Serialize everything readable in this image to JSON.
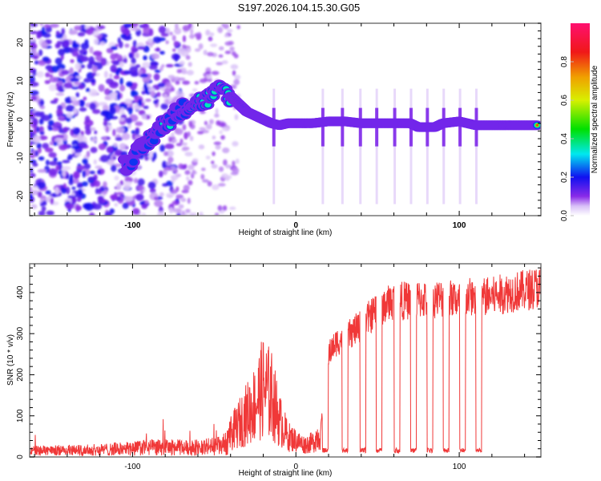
{
  "title": "S197.2026.104.15.30.G05",
  "chart_data": [
    {
      "type": "heatmap",
      "name": "spectrogram",
      "xlabel": "Height of straight line (km)",
      "ylabel": "Frequency (Hz)",
      "xlim": [
        -163,
        150
      ],
      "ylim": [
        -25,
        25
      ],
      "xticks": [
        -100,
        0,
        100
      ],
      "xtick_labels": [
        "-100",
        "0",
        "100"
      ],
      "yticks": [
        -20,
        -10,
        0,
        10,
        20
      ],
      "ytick_labels": [
        "-20",
        "-10",
        "0",
        "10",
        "20"
      ],
      "colorbar": {
        "label": "Normalized spectral amplitude",
        "range": [
          0.0,
          1.0
        ],
        "ticks": [
          0.0,
          0.2,
          0.4,
          0.6,
          0.8
        ],
        "tick_labels": [
          "0.0",
          "0.2",
          "0.4",
          "0.6",
          "0.8"
        ],
        "colormap": "purple-blue-cyan-green-yellow-red-magenta"
      },
      "ridge": {
        "description": "Dominant spectral ridge (peak frequency vs height)",
        "x": [
          -105,
          -95,
          -85,
          -75,
          -65,
          -55,
          -45,
          -40,
          -35,
          -30,
          -25,
          -20,
          -15,
          -10,
          -5,
          0,
          10,
          20,
          30,
          40,
          50,
          60,
          70,
          75,
          80,
          85,
          90,
          100,
          110,
          120,
          130,
          140,
          148
        ],
        "y": [
          -12,
          -8,
          -3,
          1,
          4,
          5,
          8,
          6,
          4,
          2,
          1,
          0,
          -1,
          -1.5,
          -1,
          -1,
          -1,
          -0.5,
          -0.5,
          -1,
          -1,
          -1,
          -1,
          -2,
          -2,
          -2,
          -1,
          -0.5,
          -1.5,
          -1.5,
          -1.5,
          -1.5,
          -1.5
        ],
        "amplitude": [
          0.2,
          0.25,
          0.3,
          0.3,
          0.35,
          0.35,
          0.45,
          0.4,
          0.5,
          0.6,
          0.65,
          0.6,
          0.55,
          0.5,
          0.5,
          0.55,
          0.8,
          0.85,
          0.9,
          0.7,
          0.6,
          0.7,
          0.9,
          0.8,
          0.7,
          0.8,
          0.75,
          0.8,
          0.95,
          0.95,
          0.95,
          0.95,
          0.95
        ]
      },
      "noise_region": {
        "x_from": -163,
        "x_to": -90,
        "amplitude_max": 0.15
      }
    },
    {
      "type": "line",
      "name": "snr",
      "xlabel": "Height of straight line (km)",
      "ylabel": "SNR (10 * v/v)",
      "xlim": [
        -163,
        150
      ],
      "ylim": [
        0,
        470
      ],
      "xticks": [
        -100,
        0,
        100
      ],
      "xtick_labels": [
        "-100",
        "0",
        "100"
      ],
      "yticks": [
        0,
        100,
        200,
        300,
        400
      ],
      "ytick_labels": [
        "0",
        "100",
        "200",
        "300",
        "400"
      ],
      "color": "#ee2222",
      "envelope": {
        "x": [
          -163,
          -120,
          -90,
          -60,
          -45,
          -35,
          -25,
          -20,
          -15,
          -10,
          -5,
          0,
          5,
          10,
          15,
          18,
          20,
          25,
          30,
          40,
          50,
          60,
          70,
          80,
          90,
          100,
          110,
          120,
          130,
          140,
          150
        ],
        "y": [
          15,
          18,
          25,
          25,
          30,
          80,
          130,
          170,
          150,
          90,
          50,
          40,
          30,
          35,
          60,
          180,
          250,
          280,
          290,
          320,
          360,
          380,
          380,
          385,
          385,
          385,
          390,
          390,
          400,
          405,
          415
        ]
      },
      "dropouts_x": [
        18,
        30,
        41,
        51,
        62,
        72,
        82,
        92,
        102,
        112
      ],
      "dropout_level": 10
    }
  ]
}
